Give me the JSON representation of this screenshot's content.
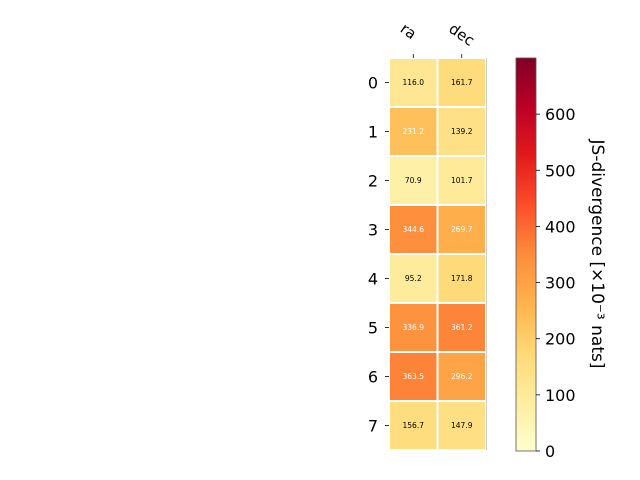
{
  "chart_data": {
    "type": "heatmap",
    "columns": [
      "ra",
      "dec"
    ],
    "rows": [
      "0",
      "1",
      "2",
      "3",
      "4",
      "5",
      "6",
      "7"
    ],
    "values": [
      [
        116.0,
        161.7
      ],
      [
        231.2,
        139.2
      ],
      [
        70.9,
        101.7
      ],
      [
        344.6,
        269.7
      ],
      [
        95.2,
        171.8
      ],
      [
        336.9,
        361.2
      ],
      [
        363.5,
        296.2
      ],
      [
        156.7,
        147.9
      ]
    ],
    "colorbar": {
      "label": "JS-divergence [×10⁻³ nats]",
      "min": 0,
      "max": 700,
      "ticks": [
        0,
        100,
        200,
        300,
        400,
        500,
        600
      ],
      "colormap": "YlOrRd"
    },
    "text_color_threshold": 200
  }
}
